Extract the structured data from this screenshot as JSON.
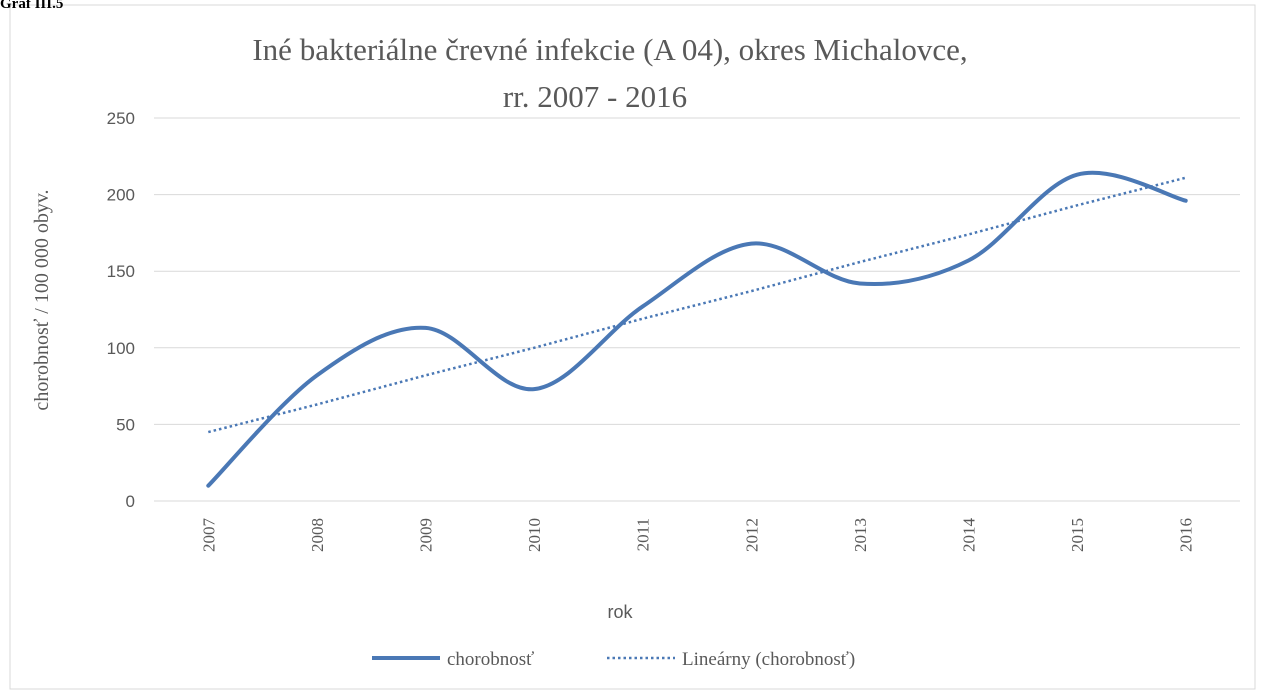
{
  "caption": "Graf III.5",
  "chart_data": {
    "type": "line",
    "title": [
      "Iné bakteriálne črevné infekcie (A 04), okres Michalovce,",
      "rr. 2007 - 2016"
    ],
    "x_label": "rok",
    "y_label": "chorobnosť / 100 000 obyv.",
    "categories": [
      "2007",
      "2008",
      "2009",
      "2010",
      "2011",
      "2012",
      "2013",
      "2014",
      "2015",
      "2016"
    ],
    "series": [
      {
        "name": "chorobnosť",
        "color": "#4a78b5",
        "style": "smooth",
        "values": [
          10,
          82,
          113,
          73,
          127,
          168,
          142,
          157,
          213,
          196
        ]
      },
      {
        "name": "Lineárny (chorobnosť)",
        "color": "#4a78b5",
        "style": "dotted",
        "values": [
          45,
          63,
          82,
          100,
          119,
          137,
          156,
          174,
          193,
          211
        ]
      }
    ],
    "ylim": [
      0,
      250
    ],
    "yticks": [
      0,
      50,
      100,
      150,
      200,
      250
    ],
    "grid": true,
    "legend": "bottom"
  }
}
